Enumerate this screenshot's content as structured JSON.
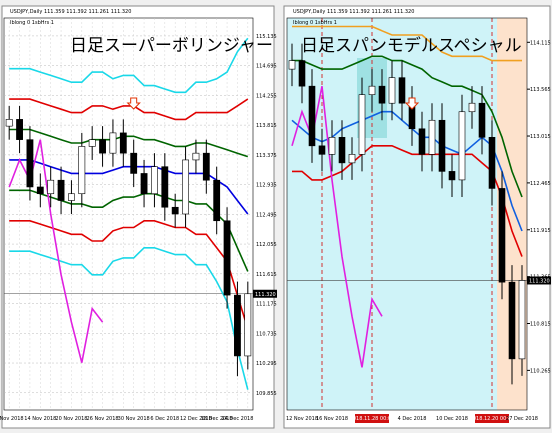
{
  "chart_data": [
    {
      "type": "candlestick",
      "title": "日足スーパーボリンジャー",
      "header": "USDJPY,Daily 111.359 111.392 111.261 111.320",
      "subheader": "Iblong 0 1sbHrs 1",
      "categories": [
        "9 Nov 2018",
        null,
        null,
        "14 Nov 2018",
        null,
        null,
        "20 Nov 2018",
        null,
        null,
        "26 Nov 2018",
        null,
        null,
        "30 Nov 2018",
        null,
        null,
        "6 Dec 2018",
        null,
        null,
        "12 Dec 2018",
        null,
        "18 Dec 2018",
        null,
        "24 Dec 2018",
        null
      ],
      "open": [
        113.8,
        113.9,
        113.6,
        112.9,
        112.8,
        113.0,
        112.7,
        112.8,
        113.5,
        113.6,
        113.4,
        113.7,
        113.4,
        113.1,
        112.8,
        113.2,
        112.6,
        112.5,
        113.3,
        113.4,
        113.0,
        112.4,
        111.3,
        110.4
      ],
      "high": [
        114.1,
        114.1,
        113.8,
        113.1,
        113.2,
        113.2,
        113.0,
        113.7,
        113.8,
        113.8,
        113.9,
        113.9,
        113.6,
        113.3,
        113.4,
        113.4,
        112.8,
        113.5,
        113.6,
        113.6,
        113.2,
        112.6,
        111.5,
        111.5
      ],
      "low": [
        113.6,
        113.4,
        112.7,
        112.6,
        112.6,
        112.5,
        112.5,
        112.6,
        113.3,
        113.2,
        113.2,
        113.2,
        112.9,
        112.6,
        112.6,
        112.4,
        112.3,
        112.3,
        113.1,
        112.8,
        112.2,
        111.1,
        110.1,
        110.2
      ],
      "close": [
        113.9,
        113.6,
        112.9,
        112.8,
        113.0,
        112.7,
        112.8,
        113.5,
        113.6,
        113.4,
        113.7,
        113.4,
        113.1,
        112.8,
        113.2,
        112.6,
        112.5,
        113.3,
        113.4,
        113.0,
        112.4,
        111.3,
        110.4,
        111.32
      ],
      "series": [
        {
          "color": "#19d8e8",
          "values": [
            114.65,
            114.65,
            114.65,
            114.6,
            114.55,
            114.5,
            114.45,
            114.45,
            114.6,
            114.6,
            114.5,
            114.55,
            114.55,
            114.4,
            114.4,
            114.35,
            114.3,
            114.3,
            114.45,
            114.45,
            114.5,
            114.6,
            114.9,
            115.1
          ]
        },
        {
          "color": "#e00000",
          "values": [
            114.2,
            114.2,
            114.2,
            114.15,
            114.1,
            114.05,
            114.0,
            114.0,
            114.1,
            114.1,
            114.05,
            114.1,
            114.1,
            114.0,
            114.0,
            113.95,
            113.9,
            113.9,
            114.0,
            114.0,
            114.0,
            114.0,
            114.1,
            114.2
          ]
        },
        {
          "color": "#006400",
          "values": [
            113.75,
            113.75,
            113.75,
            113.7,
            113.65,
            113.6,
            113.55,
            113.55,
            113.6,
            113.6,
            113.6,
            113.65,
            113.65,
            113.6,
            113.6,
            113.55,
            113.5,
            113.5,
            113.55,
            113.55,
            113.5,
            113.45,
            113.4,
            113.35
          ]
        },
        {
          "color": "#0000e0",
          "values": [
            113.3,
            113.3,
            113.3,
            113.25,
            113.2,
            113.15,
            113.1,
            113.1,
            113.1,
            113.1,
            113.15,
            113.2,
            113.2,
            113.2,
            113.2,
            113.15,
            113.1,
            113.1,
            113.1,
            113.1,
            113.0,
            112.9,
            112.7,
            112.5
          ]
        },
        {
          "color": "#006400",
          "values": [
            112.85,
            112.85,
            112.85,
            112.8,
            112.75,
            112.7,
            112.65,
            112.65,
            112.6,
            112.6,
            112.7,
            112.75,
            112.75,
            112.8,
            112.8,
            112.75,
            112.7,
            112.7,
            112.65,
            112.65,
            112.5,
            112.35,
            112.0,
            111.65
          ]
        },
        {
          "color": "#e00000",
          "values": [
            112.4,
            112.4,
            112.4,
            112.35,
            112.3,
            112.25,
            112.2,
            112.2,
            112.1,
            112.1,
            112.25,
            112.3,
            112.3,
            112.4,
            112.4,
            112.35,
            112.3,
            112.3,
            112.2,
            112.2,
            112.0,
            111.8,
            111.3,
            110.8
          ]
        },
        {
          "color": "#19d8e8",
          "values": [
            111.95,
            111.95,
            111.95,
            111.9,
            111.85,
            111.8,
            111.75,
            111.75,
            111.6,
            111.6,
            111.8,
            111.85,
            111.85,
            112.0,
            112.0,
            111.95,
            111.9,
            111.9,
            111.75,
            111.75,
            111.5,
            111.2,
            110.5,
            109.9
          ]
        },
        {
          "color": "#e020e0",
          "values": [
            112.9,
            113.3,
            113.0,
            113.6,
            112.5,
            111.6,
            110.9,
            110.3,
            111.1,
            110.9,
            null,
            null,
            null,
            null,
            null,
            null,
            null,
            null,
            null,
            null,
            null,
            null,
            null,
            null
          ]
        }
      ],
      "current_price": {
        "value": 111.32,
        "label": "111.320"
      },
      "ylim": [
        109.6,
        115.4
      ],
      "yticks": [
        115.135,
        114.695,
        114.255,
        113.815,
        113.375,
        112.935,
        112.495,
        112.055,
        111.615,
        111.175,
        110.735,
        110.295,
        109.855
      ],
      "grid": true
    },
    {
      "type": "candlestick",
      "title": "日足スパンモデルスペシャル",
      "header": "USDJPY,Daily 111.359 111.392 111.261 111.320",
      "subheader": "Iblong 0 1sbHrs 1",
      "categories": [
        null,
        "12 Nov 2018",
        null,
        null,
        "16 Nov 2018",
        null,
        null,
        null,
        "2018.11.28 00:00",
        null,
        null,
        null,
        "4 Dec 2018",
        null,
        null,
        null,
        "10 Dec 2018",
        null,
        null,
        null,
        "2018.12.20 00:00",
        null,
        null,
        "27 Dec 2018"
      ],
      "open": [
        113.8,
        113.9,
        113.6,
        112.9,
        112.8,
        113.0,
        112.7,
        112.8,
        113.5,
        113.6,
        113.4,
        113.7,
        113.4,
        113.1,
        112.8,
        113.2,
        112.6,
        112.5,
        113.3,
        113.4,
        113.0,
        112.4,
        111.3,
        110.4
      ],
      "high": [
        114.1,
        114.1,
        113.8,
        113.1,
        113.2,
        113.2,
        113.0,
        113.7,
        113.8,
        113.8,
        113.9,
        113.9,
        113.6,
        113.3,
        113.4,
        113.4,
        112.8,
        113.5,
        113.6,
        113.6,
        113.2,
        112.6,
        111.5,
        111.5
      ],
      "low": [
        113.6,
        113.4,
        112.7,
        112.6,
        112.6,
        112.5,
        112.5,
        112.6,
        113.3,
        113.2,
        113.2,
        113.2,
        112.9,
        112.6,
        112.6,
        112.4,
        112.3,
        112.3,
        113.1,
        112.8,
        112.2,
        111.1,
        110.1,
        110.2
      ],
      "close": [
        113.9,
        113.6,
        112.9,
        112.8,
        113.0,
        112.7,
        112.8,
        113.5,
        113.6,
        113.4,
        113.7,
        113.4,
        113.1,
        112.8,
        113.2,
        112.6,
        112.5,
        113.3,
        113.4,
        113.0,
        112.4,
        111.3,
        110.4,
        111.32
      ],
      "series": [
        {
          "color": "#f0a020",
          "values": [
            114.3,
            114.3,
            114.3,
            114.3,
            114.3,
            114.3,
            114.3,
            114.3,
            114.3,
            114.25,
            114.2,
            114.2,
            114.2,
            114.2,
            114.1,
            114.0,
            113.95,
            113.95,
            113.95,
            113.95,
            113.9,
            113.9,
            113.9,
            113.9
          ]
        },
        {
          "color": "#006400",
          "values": [
            113.9,
            113.9,
            113.85,
            113.8,
            113.8,
            113.8,
            113.85,
            113.9,
            113.95,
            113.95,
            113.9,
            113.9,
            113.85,
            113.8,
            113.7,
            113.65,
            113.6,
            113.6,
            113.55,
            113.5,
            113.3,
            113.0,
            112.6,
            112.3
          ]
        },
        {
          "color": "#1060e0",
          "values": [
            113.2,
            113.1,
            113.0,
            112.95,
            113.0,
            113.1,
            113.15,
            113.2,
            113.25,
            113.3,
            113.3,
            113.2,
            113.1,
            113.0,
            113.0,
            112.9,
            112.85,
            112.8,
            112.9,
            113.0,
            112.9,
            112.6,
            112.2,
            111.9
          ]
        },
        {
          "color": "#e00000",
          "values": [
            112.6,
            112.6,
            112.5,
            112.5,
            112.55,
            112.6,
            112.7,
            112.8,
            112.9,
            112.9,
            112.9,
            112.85,
            112.8,
            112.8,
            112.8,
            112.8,
            112.8,
            112.8,
            112.8,
            112.7,
            112.6,
            112.3,
            111.9,
            111.6
          ]
        },
        {
          "color": "#e020e0",
          "values": [
            112.9,
            113.3,
            113.0,
            113.6,
            112.5,
            111.6,
            110.9,
            110.3,
            111.1,
            110.9,
            null,
            null,
            null,
            null,
            null,
            null,
            null,
            null,
            null,
            null,
            null,
            null,
            null,
            null
          ]
        }
      ],
      "current_price": {
        "value": 111.32,
        "label": "111.320"
      },
      "ylim": [
        109.8,
        114.4
      ],
      "yticks": [
        114.115,
        113.565,
        113.015,
        112.465,
        111.915,
        111.365,
        110.815,
        110.265
      ],
      "grid": false
    }
  ]
}
